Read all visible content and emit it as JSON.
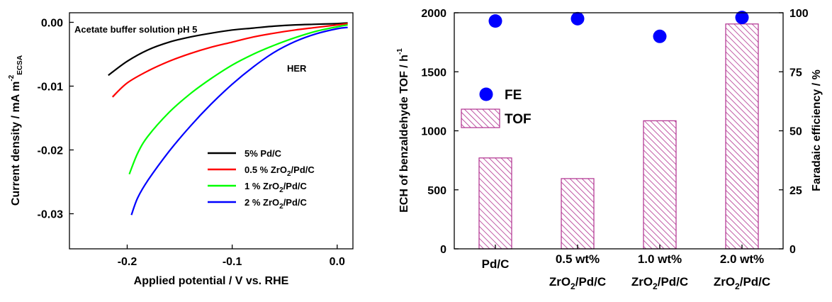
{
  "chart_data": [
    {
      "type": "line",
      "title": "",
      "annotation": "Acetate buffer solution pH 5",
      "region_label": "HER",
      "xlabel": "Applied potential / V vs. RHE",
      "ylabel": {
        "main": "Current density / mA m",
        "sub": "ECSA",
        "sup": "-2"
      },
      "xlim": [
        -0.255,
        0.015
      ],
      "ylim": [
        -0.0355,
        0.0015
      ],
      "xticks": [
        -0.2,
        -0.1,
        0.0
      ],
      "xtick_labels": [
        "-0.2",
        "-0.1",
        "0.0"
      ],
      "yticks": [
        0.0,
        -0.01,
        -0.02,
        -0.03
      ],
      "ytick_labels": [
        "0.00",
        "-0.01",
        "-0.02",
        "-0.03"
      ],
      "grid": false,
      "legend_position": "lower-right",
      "series": [
        {
          "name": "5% Pd/C",
          "color": "#000000",
          "x": [
            -0.218,
            -0.2,
            -0.18,
            -0.16,
            -0.14,
            -0.12,
            -0.1,
            -0.08,
            -0.06,
            -0.04,
            -0.02,
            0.0,
            0.01
          ],
          "y": [
            -0.0083,
            -0.0061,
            -0.0043,
            -0.0031,
            -0.0023,
            -0.0017,
            -0.0012,
            -0.0009,
            -0.0006,
            -0.0004,
            -0.0003,
            -0.0002,
            -0.0001
          ]
        },
        {
          "name": "0.5 % ZrO2/Pd/C",
          "name_parts": [
            "0.5 % ZrO",
            "2",
            "/Pd/C"
          ],
          "color": "#ff0000",
          "x": [
            -0.214,
            -0.2,
            -0.18,
            -0.16,
            -0.14,
            -0.12,
            -0.1,
            -0.08,
            -0.06,
            -0.04,
            -0.02,
            0.0,
            0.01
          ],
          "y": [
            -0.0117,
            -0.0095,
            -0.0076,
            -0.0061,
            -0.0049,
            -0.0039,
            -0.0031,
            -0.0023,
            -0.0017,
            -0.0012,
            -0.0008,
            -0.0004,
            -0.0002
          ]
        },
        {
          "name": "1 % ZrO2/Pd/C",
          "name_parts": [
            "1 % ZrO",
            "2",
            "/Pd/C"
          ],
          "color": "#00ff00",
          "x": [
            -0.198,
            -0.19,
            -0.18,
            -0.16,
            -0.14,
            -0.12,
            -0.1,
            -0.08,
            -0.06,
            -0.04,
            -0.02,
            0.0,
            0.01
          ],
          "y": [
            -0.0238,
            -0.0205,
            -0.0178,
            -0.0141,
            -0.0112,
            -0.0088,
            -0.0067,
            -0.005,
            -0.0036,
            -0.0024,
            -0.0014,
            -0.0007,
            -0.0004
          ]
        },
        {
          "name": "2 % ZrO2/Pd/C",
          "name_parts": [
            "2 % ZrO",
            "2",
            "/Pd/C"
          ],
          "color": "#0000ff",
          "x": [
            -0.196,
            -0.19,
            -0.18,
            -0.16,
            -0.14,
            -0.12,
            -0.1,
            -0.08,
            -0.06,
            -0.04,
            -0.02,
            0.0,
            0.01
          ],
          "y": [
            -0.0302,
            -0.0275,
            -0.0247,
            -0.0202,
            -0.0163,
            -0.0128,
            -0.0097,
            -0.007,
            -0.0047,
            -0.003,
            -0.0018,
            -0.001,
            -0.0008
          ]
        }
      ]
    },
    {
      "type": "bar",
      "title": "",
      "categories": [
        {
          "line1": "Pd/C",
          "line2_parts": null
        },
        {
          "line1": "0.5 wt%",
          "line2_parts": [
            "ZrO",
            "2",
            "/Pd/C"
          ]
        },
        {
          "line1": "1.0 wt%",
          "line2_parts": [
            "ZrO",
            "2",
            "/Pd/C"
          ]
        },
        {
          "line1": "2.0 wt%",
          "line2_parts": [
            "ZrO",
            "2",
            "/Pd/C"
          ]
        }
      ],
      "ylabel_left": {
        "main": "ECH of benzaldehyde TOF / h",
        "sup": "-1"
      },
      "ylabel_right": "Faradaic efficiency / %",
      "ylim_left": [
        0,
        2000
      ],
      "ylim_right": [
        0,
        100
      ],
      "yticks_left": [
        0,
        500,
        1000,
        1500,
        2000
      ],
      "ytick_labels_left": [
        "0",
        "500",
        "1000",
        "1500",
        "2000"
      ],
      "yticks_right": [
        0,
        25,
        50,
        75,
        100
      ],
      "ytick_labels_right": [
        "0",
        "25",
        "50",
        "75",
        "100"
      ],
      "grid": false,
      "legend_position": "middle-left",
      "series": [
        {
          "name": "TOF",
          "axis": "left",
          "color": "#b0308f",
          "style": "hatched-bar",
          "values": [
            770,
            595,
            1085,
            1905
          ]
        },
        {
          "name": "FE",
          "axis": "right",
          "color": "#0000ff",
          "style": "dot",
          "values": [
            96.5,
            97.5,
            90,
            98
          ]
        }
      ]
    }
  ]
}
